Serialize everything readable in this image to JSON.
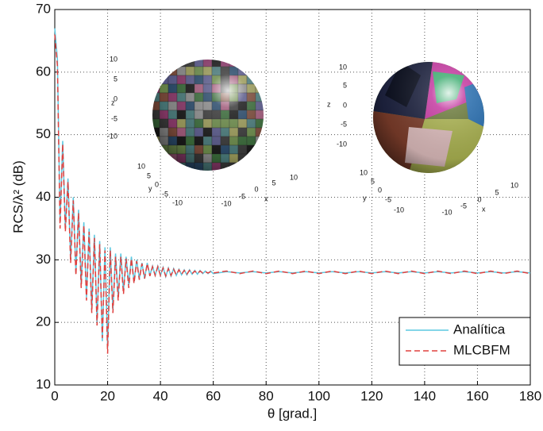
{
  "chart_data": {
    "type": "line",
    "x_label": "θ [grad.]",
    "y_label": "RCS/λ² (dB)",
    "xlim": [
      0,
      180
    ],
    "xticks": [
      0,
      20,
      40,
      60,
      80,
      100,
      120,
      140,
      160,
      180
    ],
    "ylim": [
      10,
      70
    ],
    "yticks": [
      10,
      20,
      30,
      40,
      50,
      60,
      70
    ],
    "grid": true,
    "legend": "lower right",
    "x": [
      0,
      1,
      2,
      3,
      4,
      5,
      6,
      7,
      8,
      9,
      10,
      11,
      12,
      13,
      14,
      15,
      16,
      17,
      18,
      19,
      20,
      21,
      22,
      23,
      24,
      25,
      26,
      27,
      28,
      29,
      30,
      31,
      32,
      33,
      34,
      35,
      36,
      37,
      38,
      39,
      40,
      41,
      42,
      43,
      44,
      45,
      46,
      47,
      48,
      49,
      50,
      51,
      52,
      53,
      54,
      55,
      56,
      57,
      58,
      59,
      60,
      65,
      70,
      75,
      80,
      85,
      90,
      95,
      100,
      105,
      110,
      115,
      120,
      125,
      130,
      135,
      140,
      145,
      150,
      155,
      160,
      165,
      170,
      175,
      180
    ],
    "series": [
      {
        "name": "Analítica",
        "color": "#5bc8e0",
        "dash": false,
        "values": [
          67,
          62,
          36,
          49,
          35,
          43,
          30,
          40,
          28,
          38,
          26,
          36,
          24,
          35,
          22,
          34,
          20,
          33,
          17,
          32,
          16,
          32,
          22,
          31,
          24,
          31,
          25,
          30.5,
          26,
          30.5,
          26.5,
          30,
          27,
          29.5,
          27,
          29.5,
          27.5,
          29,
          27.5,
          29,
          27.5,
          28.8,
          27.3,
          28.7,
          27.4,
          28.6,
          27.5,
          28.5,
          27.6,
          28.4,
          27.6,
          28.4,
          27.7,
          28.3,
          27.7,
          28.3,
          27.8,
          28.2,
          27.8,
          28.2,
          27.8,
          28.1,
          27.9,
          28.1,
          27.9,
          28.1,
          27.9,
          28.1,
          27.9,
          28.1,
          27.9,
          28.1,
          27.9,
          28.1,
          27.9,
          28.1,
          27.9,
          28.1,
          27.9,
          28.1,
          27.9,
          28.1,
          27.9,
          28.1,
          27.9
        ]
      },
      {
        "name": "MLCBFM",
        "color": "#e0413f",
        "dash": true,
        "values": [
          66,
          61,
          35,
          48.5,
          34.5,
          42.5,
          29.5,
          39.5,
          27.5,
          37.5,
          25.5,
          35.5,
          23.5,
          34.5,
          21.5,
          33.5,
          19.5,
          32.5,
          17.5,
          31.5,
          15,
          31.5,
          21.5,
          30.5,
          23.5,
          30.5,
          24.5,
          30.2,
          25.5,
          30.2,
          26.2,
          29.8,
          26.8,
          29.4,
          27,
          29.4,
          27.4,
          28.9,
          27.5,
          28.9,
          27.5,
          28.7,
          27.4,
          28.6,
          27.5,
          28.5,
          27.6,
          28.4,
          27.7,
          28.3,
          27.7,
          28.3,
          27.8,
          28.2,
          27.8,
          28.2,
          27.9,
          28.1,
          27.9,
          28.1,
          27.9,
          28.2,
          27.8,
          28.2,
          27.8,
          28.2,
          27.8,
          28.2,
          27.8,
          28.2,
          27.8,
          28.2,
          27.8,
          28.2,
          27.8,
          28.2,
          27.8,
          28.2,
          27.8,
          28.2,
          27.8,
          28.2,
          27.8,
          28.2,
          27.8
        ]
      }
    ],
    "insets": [
      {
        "axis_labels": [
          "x",
          "y",
          "z"
        ],
        "xticks": [
          -10,
          -5,
          0,
          5,
          10
        ],
        "yticks": [
          10,
          5,
          0,
          -5,
          -10
        ],
        "zticks": [
          10,
          5,
          0,
          -5,
          -10
        ]
      },
      {
        "axis_labels": [
          "x",
          "y",
          "z"
        ],
        "xticks": [
          -10,
          -5,
          0,
          5,
          10
        ],
        "yticks": [
          10,
          5,
          0,
          -5,
          -10
        ],
        "zticks": [
          10,
          5,
          0,
          -5,
          -10
        ]
      }
    ]
  }
}
